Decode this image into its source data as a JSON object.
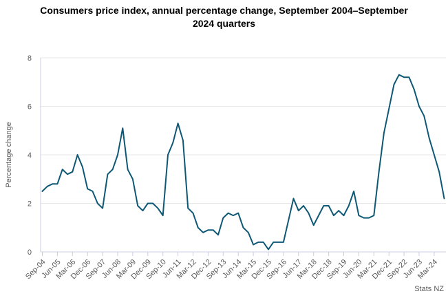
{
  "title": "Consumers price index, annual percentage change, September 2004–September 2024 quarters",
  "source": "Stats NZ",
  "colors": {
    "line": "#0d5875",
    "grid": "#e7e7e7",
    "axis": "#c9cee3",
    "text": "#595959",
    "title": "#000000"
  },
  "chart_data": {
    "type": "line",
    "title": "Consumers price index, annual percentage change, September 2004–September 2024 quarters",
    "xlabel": "",
    "ylabel": "Percentage change",
    "ylim": [
      0,
      8
    ],
    "yticks": [
      0,
      2,
      4,
      6,
      8
    ],
    "x_tick_step": 3,
    "grid": "horizontal",
    "legend": "none",
    "x": [
      "Sep-04",
      "Dec-04",
      "Mar-05",
      "Jun-05",
      "Sep-05",
      "Dec-05",
      "Mar-06",
      "Jun-06",
      "Sep-06",
      "Dec-06",
      "Mar-07",
      "Jun-07",
      "Sep-07",
      "Dec-07",
      "Mar-08",
      "Jun-08",
      "Sep-08",
      "Dec-08",
      "Mar-09",
      "Jun-09",
      "Sep-09",
      "Dec-09",
      "Mar-10",
      "Jun-10",
      "Sep-10",
      "Dec-10",
      "Mar-11",
      "Jun-11",
      "Sep-11",
      "Dec-11",
      "Mar-12",
      "Jun-12",
      "Sep-12",
      "Dec-12",
      "Mar-13",
      "Jun-13",
      "Sep-13",
      "Dec-13",
      "Mar-14",
      "Jun-14",
      "Sep-14",
      "Dec-14",
      "Mar-15",
      "Jun-15",
      "Sep-15",
      "Dec-15",
      "Mar-16",
      "Jun-16",
      "Sep-16",
      "Dec-16",
      "Mar-17",
      "Jun-17",
      "Sep-17",
      "Dec-17",
      "Mar-18",
      "Jun-18",
      "Sep-18",
      "Dec-18",
      "Mar-19",
      "Jun-19",
      "Sep-19",
      "Dec-19",
      "Mar-20",
      "Jun-20",
      "Sep-20",
      "Dec-20",
      "Mar-21",
      "Jun-21",
      "Sep-21",
      "Dec-21",
      "Mar-22",
      "Jun-22",
      "Sep-22",
      "Dec-22",
      "Mar-23",
      "Jun-23",
      "Sep-23",
      "Dec-23",
      "Mar-24",
      "Jun-24",
      "Sep-24"
    ],
    "series": [
      {
        "name": "CPI annual percentage change (%)",
        "values": [
          2.5,
          2.7,
          2.8,
          2.8,
          3.4,
          3.2,
          3.3,
          4.0,
          3.5,
          2.6,
          2.5,
          2.0,
          1.8,
          3.2,
          3.4,
          4.0,
          5.1,
          3.4,
          3.0,
          1.9,
          1.7,
          2.0,
          2.0,
          1.8,
          1.5,
          4.0,
          4.5,
          5.3,
          4.6,
          1.8,
          1.6,
          1.0,
          0.8,
          0.9,
          0.9,
          0.7,
          1.4,
          1.6,
          1.5,
          1.6,
          1.0,
          0.8,
          0.3,
          0.4,
          0.4,
          0.1,
          0.4,
          0.4,
          0.4,
          1.3,
          2.2,
          1.7,
          1.9,
          1.6,
          1.1,
          1.5,
          1.9,
          1.9,
          1.5,
          1.7,
          1.5,
          1.9,
          2.5,
          1.5,
          1.4,
          1.4,
          1.5,
          3.3,
          4.9,
          5.9,
          6.9,
          7.3,
          7.2,
          7.2,
          6.7,
          6.0,
          5.6,
          4.7,
          4.0,
          3.3,
          2.2
        ]
      }
    ]
  }
}
